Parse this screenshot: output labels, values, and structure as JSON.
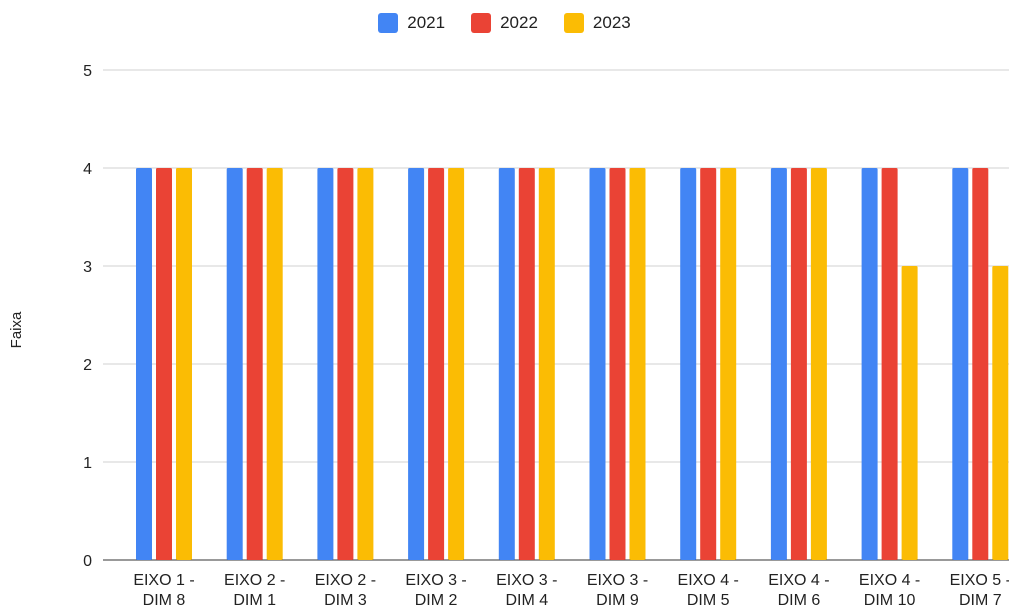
{
  "chart_data": {
    "type": "bar",
    "title": "",
    "xlabel": "",
    "ylabel": "Faixa",
    "ylim": [
      0,
      5
    ],
    "yticks": [
      "0",
      "1",
      "2",
      "3",
      "4",
      "5"
    ],
    "grid": true,
    "legend_position": "top-center",
    "categories": [
      [
        "EIXO 1 -",
        "DIM 8"
      ],
      [
        "EIXO 2 -",
        "DIM 1"
      ],
      [
        "EIXO 2 -",
        "DIM 3"
      ],
      [
        "EIXO 3 -",
        "DIM 2"
      ],
      [
        "EIXO 3 -",
        "DIM 4"
      ],
      [
        "EIXO 3 -",
        "DIM 9"
      ],
      [
        "EIXO 4 -",
        "DIM 5"
      ],
      [
        "EIXO 4 -",
        "DIM 6"
      ],
      [
        "EIXO 4 -",
        "DIM 10"
      ],
      [
        "EIXO 5 -",
        "DIM 7"
      ]
    ],
    "series": [
      {
        "name": "2021",
        "color": "#4285F4",
        "values": [
          4,
          4,
          4,
          4,
          4,
          4,
          4,
          4,
          4,
          4
        ]
      },
      {
        "name": "2022",
        "color": "#EA4335",
        "values": [
          4,
          4,
          4,
          4,
          4,
          4,
          4,
          4,
          4,
          4
        ]
      },
      {
        "name": "2023",
        "color": "#FBBC04",
        "values": [
          4,
          4,
          4,
          4,
          4,
          4,
          4,
          4,
          3,
          3
        ]
      }
    ]
  }
}
